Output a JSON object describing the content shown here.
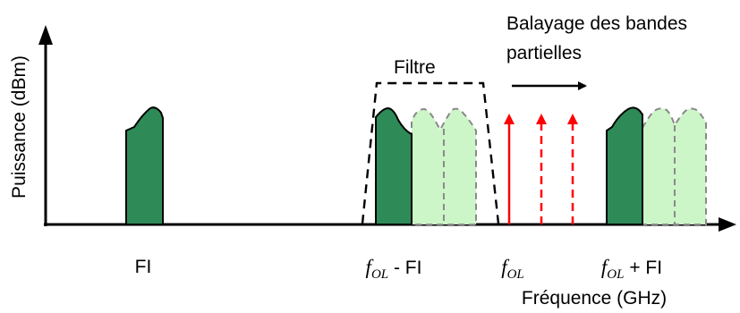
{
  "axes": {
    "y_label": "Puissance (dBm)",
    "x_label": "Fréquence (GHz)"
  },
  "labels": {
    "fi": "FI",
    "filter": "Filtre",
    "sweep_line1": "Balayage des bandes",
    "sweep_line2": "partielles",
    "f_symbol": "f",
    "f_subscript": "OL",
    "minus_fi": " - FI",
    "plus_fi": " + FI"
  },
  "colors": {
    "band_dark": "#2e8b57",
    "band_light": "#ccf5c8",
    "lo_line": "#ff0000"
  }
}
